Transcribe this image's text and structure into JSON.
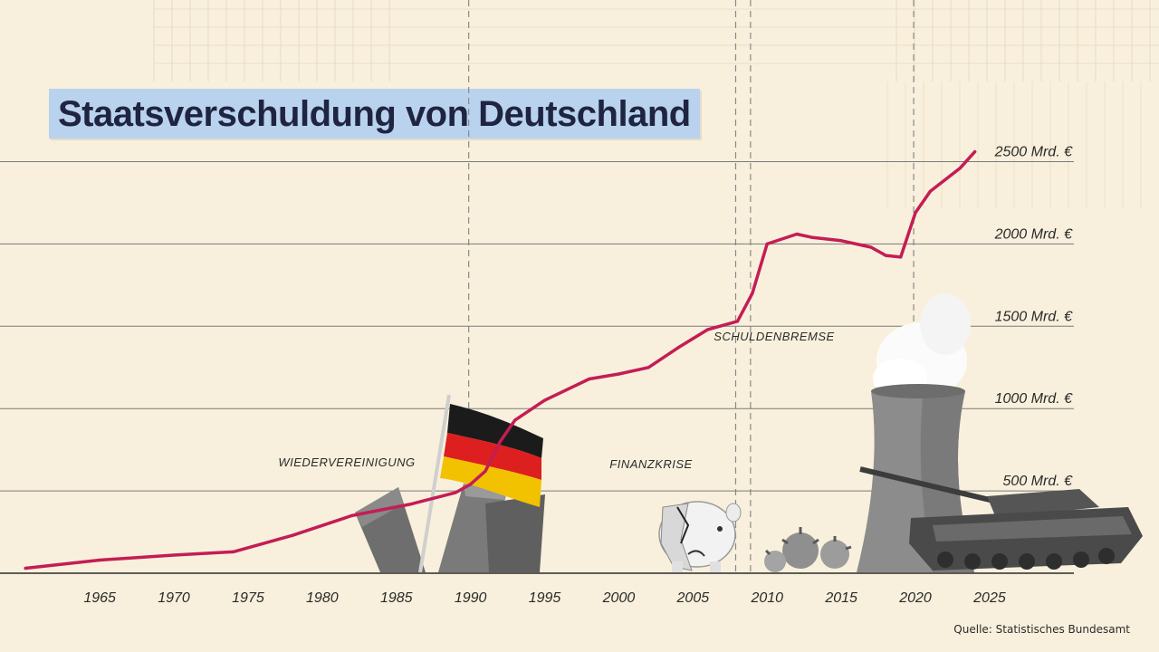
{
  "title": "Staatsverschuldung von Deutschland",
  "source": "Quelle: Statistisches Bundesamt",
  "colors": {
    "background": "#f8f0dc",
    "line": "#c41d55",
    "title_bg": "#b9d2ee",
    "text": "#1f2440"
  },
  "icons": [
    "berlin-wall-icon",
    "german-flag-icon",
    "broken-piggy-bank-icon",
    "coronavirus-icon",
    "cooling-tower-icon",
    "tank-icon"
  ],
  "chart_data": {
    "type": "line",
    "title": "Staatsverschuldung von Deutschland",
    "xlabel": "",
    "ylabel": "",
    "xlim": [
      1960,
      2025
    ],
    "ylim": [
      0,
      2700
    ],
    "x_ticks": [
      "1965",
      "1970",
      "1975",
      "1980",
      "1985",
      "1990",
      "1995",
      "2000",
      "2005",
      "2010",
      "2015",
      "2020",
      "2025"
    ],
    "y_ticks": [
      {
        "value": 500,
        "label": "500 Mrd. €"
      },
      {
        "value": 1000,
        "label": "1000 Mrd. €"
      },
      {
        "value": 1500,
        "label": "1500 Mrd. €"
      },
      {
        "value": 2000,
        "label": "2000 Mrd. €"
      },
      {
        "value": 2500,
        "label": "2500 Mrd. €"
      }
    ],
    "grid": true,
    "series": [
      {
        "values": [
          [
            1960,
            30
          ],
          [
            1965,
            80
          ],
          [
            1970,
            110
          ],
          [
            1974,
            130
          ],
          [
            1978,
            230
          ],
          [
            1982,
            350
          ],
          [
            1986,
            420
          ],
          [
            1989,
            490
          ],
          [
            1990,
            540
          ],
          [
            1991,
            620
          ],
          [
            1992,
            800
          ],
          [
            1993,
            930
          ],
          [
            1995,
            1050
          ],
          [
            1998,
            1180
          ],
          [
            2000,
            1210
          ],
          [
            2002,
            1250
          ],
          [
            2004,
            1370
          ],
          [
            2006,
            1480
          ],
          [
            2008,
            1530
          ],
          [
            2009,
            1700
          ],
          [
            2010,
            2000
          ],
          [
            2012,
            2060
          ],
          [
            2013,
            2040
          ],
          [
            2015,
            2020
          ],
          [
            2017,
            1980
          ],
          [
            2018,
            1930
          ],
          [
            2019,
            1920
          ],
          [
            2020,
            2190
          ],
          [
            2021,
            2320
          ],
          [
            2022,
            2390
          ],
          [
            2023,
            2460
          ],
          [
            2024,
            2560
          ]
        ]
      }
    ],
    "annotations": [
      {
        "x": 1990,
        "label": "WIEDERVEREINIGUNG"
      },
      {
        "x": 2008,
        "label": "FINANZKRISE"
      },
      {
        "x": 2009,
        "label": "SCHULDENBREMSE"
      },
      {
        "x": 2020,
        "label": ""
      }
    ]
  }
}
